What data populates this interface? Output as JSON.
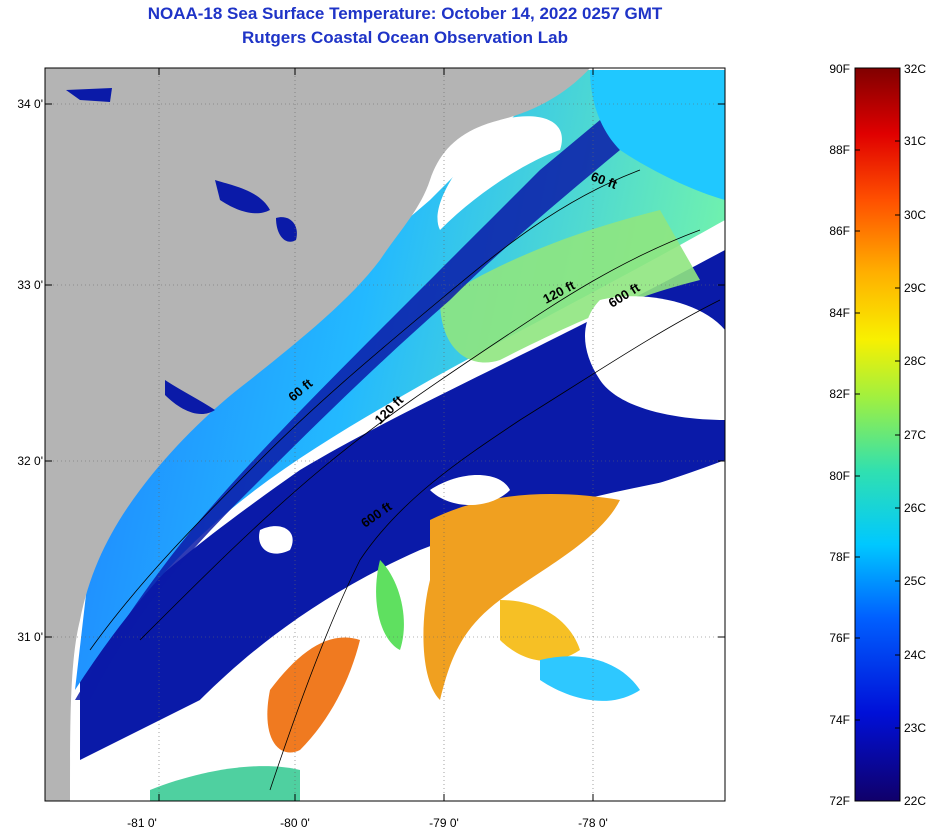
{
  "title": {
    "line1": "NOAA-18 Sea Surface Temperature:  October 14, 2022 0257 GMT",
    "line2": "Rutgers Coastal Ocean Observation Lab"
  },
  "map": {
    "lat_labels": [
      "34 0'",
      "33 0'",
      "32 0'",
      "31 0'"
    ],
    "lon_labels": [
      "-81 0'",
      "-80 0'",
      "-79 0'",
      "-78 0'"
    ],
    "contours": [
      "60 ft",
      "120 ft",
      "600 ft",
      "60 ft",
      "120 ft",
      "600 ft"
    ]
  },
  "colorbar": {
    "f_labels": [
      "90F",
      "88F",
      "86F",
      "84F",
      "82F",
      "80F",
      "78F",
      "76F",
      "74F",
      "72F"
    ],
    "c_labels": [
      "32C",
      "31C",
      "30C",
      "29C",
      "28C",
      "27C",
      "26C",
      "25C",
      "24C",
      "23C",
      "22C"
    ]
  },
  "colors": {
    "title": "#1f34c7",
    "land": "#b4b4b4",
    "cloud": "#ffffff",
    "cold_water": "#0a1aa8",
    "mid_water": "#1aa0ff",
    "warm_water": "#f0a020"
  }
}
